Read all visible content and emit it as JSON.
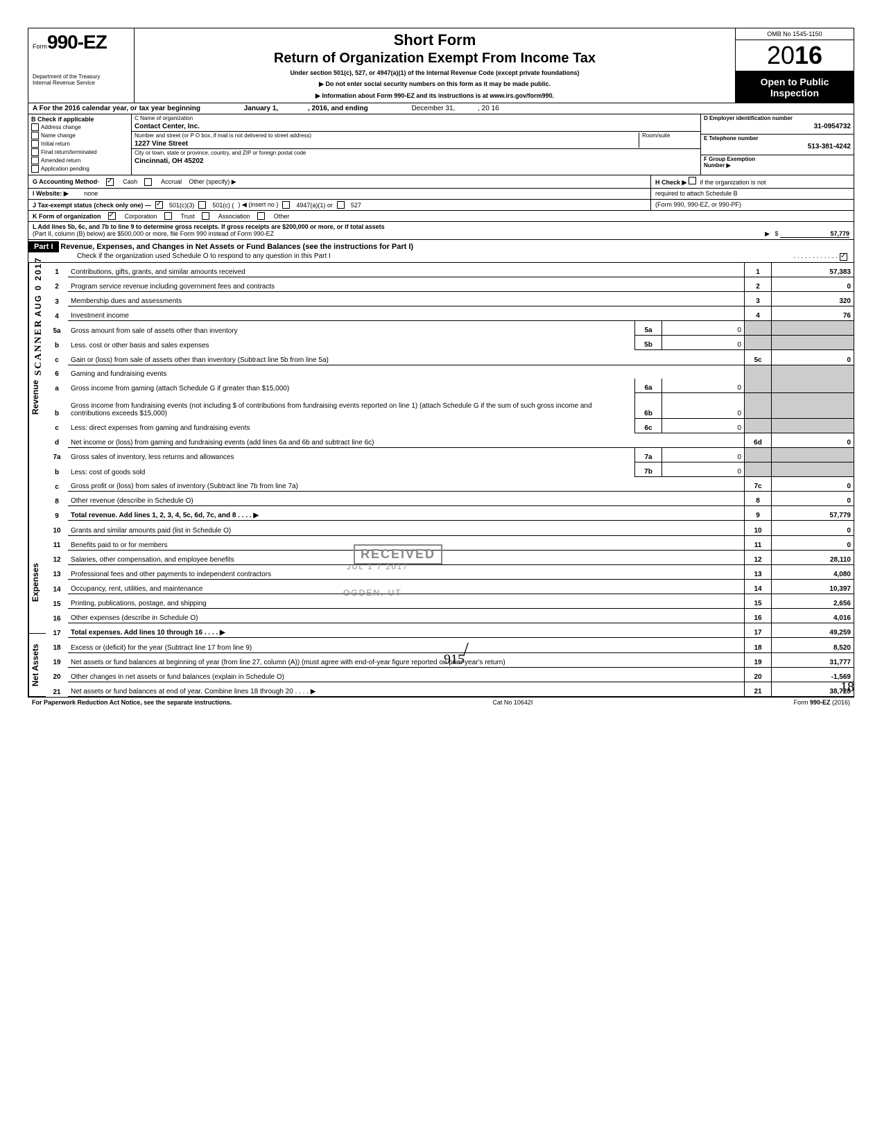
{
  "form": {
    "form_label": "Form",
    "number": "990-EZ",
    "dept1": "Department of the Treasury",
    "dept2": "Internal Revenue Service",
    "title1": "Short Form",
    "title2": "Return of Organization Exempt From Income Tax",
    "title3": "Under section 501(c), 527, or 4947(a)(1) of the Internal Revenue Code (except private foundations)",
    "note1": "▶ Do not enter social security numbers on this form as it may be made public.",
    "note2": "▶ Information about Form 990-EZ and its instructions is at www.irs.gov/form990.",
    "omb": "OMB No 1545-1150",
    "year_prefix": "20",
    "year_suffix": "16",
    "open1": "Open to Public",
    "open2": "Inspection"
  },
  "period": {
    "line": "A For the 2016 calendar year, or tax year beginning",
    "begin": "January 1,",
    "mid": ", 2016, and ending",
    "end_month": "December 31,",
    "end_year": ", 20   16"
  },
  "checks": {
    "B_label": "B  Check if applicable",
    "items": [
      "Address change",
      "Name change",
      "Initial return",
      "Final return/terminated",
      "Amended return",
      "Application pending"
    ]
  },
  "org": {
    "C_label": "C Name of organization",
    "name": "Contact Center, Inc.",
    "addr_label": "Number and street (or P O box, if mail is not delivered to street address)",
    "room_label": "Room/suite",
    "street": "1227 Vine Street",
    "city_label": "City or town, state or province, country, and ZIP or foreign postal code",
    "city": "Cincinnati, OH 45202"
  },
  "right": {
    "D_label": "D Employer identification number",
    "ein": "31-0954732",
    "E_label": "E Telephone number",
    "phone": "513-381-4242",
    "F_label": "F Group Exemption",
    "F_label2": "Number ▶"
  },
  "lines": {
    "G": "G  Accounting Method·",
    "G_cash": "Cash",
    "G_accrual": "Accrual",
    "G_other": "Other (specify) ▶",
    "I": "I   Website: ▶",
    "I_val": "none",
    "J": "J  Tax-exempt status (check only one) —",
    "J_501c3": "501(c)(3)",
    "J_501c": "501(c) (",
    "J_insert": ") ◀ (insert no )",
    "J_4947": "4947(a)(1) or",
    "J_527": "527",
    "K": "K  Form of organization",
    "K_corp": "Corporation",
    "K_trust": "Trust",
    "K_assoc": "Association",
    "K_other": "Other",
    "H": "H  Check ▶",
    "H2": "if the organization is not",
    "H3": "required to attach Schedule B",
    "H4": "(Form 990, 990-EZ, or 990-PF)",
    "L": "L  Add lines 5b, 6c, and 7b to line 9 to determine gross receipts. If gross receipts are $200,000 or more, or if total assets",
    "L2": "(Part II, column (B) below) are $500,000 or more, file Form 990 instead of Form 990-EZ",
    "L_val": "57,779"
  },
  "part1": {
    "label": "Part I",
    "title": "Revenue, Expenses, and Changes in Net Assets or Fund Balances (see the instructions for Part I)",
    "check": "Check if the organization used Schedule O to respond to any question in this Part I"
  },
  "sections": {
    "revenue": "Revenue",
    "expenses": "Expenses",
    "netassets": "Net Assets"
  },
  "rows": [
    {
      "n": "1",
      "d": "Contributions, gifts, grants, and similar amounts received",
      "rn": "1",
      "v": "57,383"
    },
    {
      "n": "2",
      "d": "Program service revenue including government fees and contracts",
      "rn": "2",
      "v": "0"
    },
    {
      "n": "3",
      "d": "Membership dues and assessments",
      "rn": "3",
      "v": "320"
    },
    {
      "n": "4",
      "d": "Investment income",
      "rn": "4",
      "v": "76"
    },
    {
      "n": "5a",
      "d": "Gross amount from sale of assets other than inventory",
      "sn": "5a",
      "sv": "0"
    },
    {
      "n": "b",
      "d": "Less. cost or other basis and sales expenses",
      "sn": "5b",
      "sv": "0"
    },
    {
      "n": "c",
      "d": "Gain or (loss) from sale of assets other than inventory (Subtract line 5b from line 5a)",
      "rn": "5c",
      "v": "0"
    },
    {
      "n": "6",
      "d": "Gaming and fundraising events"
    },
    {
      "n": "a",
      "d": "Gross income from gaming (attach Schedule G if greater than $15,000)",
      "sn": "6a",
      "sv": "0"
    },
    {
      "n": "b",
      "d": "Gross income from fundraising events (not including  $                      of contributions from fundraising events reported on line 1) (attach Schedule G if the sum of such gross income and contributions exceeds $15,000)",
      "sn": "6b",
      "sv": "0"
    },
    {
      "n": "c",
      "d": "Less: direct expenses from gaming and fundraising events",
      "sn": "6c",
      "sv": "0"
    },
    {
      "n": "d",
      "d": "Net income or (loss) from gaming and fundraising events (add lines 6a and 6b and subtract line 6c)",
      "rn": "6d",
      "v": "0"
    },
    {
      "n": "7a",
      "d": "Gross sales of inventory, less returns and allowances",
      "sn": "7a",
      "sv": "0"
    },
    {
      "n": "b",
      "d": "Less: cost of goods sold",
      "sn": "7b",
      "sv": "0"
    },
    {
      "n": "c",
      "d": "Gross profit or (loss) from sales of inventory (Subtract line 7b from line 7a)",
      "rn": "7c",
      "v": "0"
    },
    {
      "n": "8",
      "d": "Other revenue (describe in Schedule O)",
      "rn": "8",
      "v": "0"
    },
    {
      "n": "9",
      "d": "Total revenue. Add lines 1, 2, 3, 4, 5c, 6d, 7c, and 8",
      "rn": "9",
      "v": "57,779",
      "bold": true,
      "arrow": true
    },
    {
      "n": "10",
      "d": "Grants and similar amounts paid (list in Schedule O)",
      "rn": "10",
      "v": "0"
    },
    {
      "n": "11",
      "d": "Benefits paid to or for members",
      "rn": "11",
      "v": "0"
    },
    {
      "n": "12",
      "d": "Salaries, other compensation, and employee benefits",
      "rn": "12",
      "v": "28,110"
    },
    {
      "n": "13",
      "d": "Professional fees and other payments to independent contractors",
      "rn": "13",
      "v": "4,080"
    },
    {
      "n": "14",
      "d": "Occupancy, rent, utilities, and maintenance",
      "rn": "14",
      "v": "10,397"
    },
    {
      "n": "15",
      "d": "Printing, publications, postage, and shipping",
      "rn": "15",
      "v": "2,656"
    },
    {
      "n": "16",
      "d": "Other expenses (describe in Schedule O)",
      "rn": "16",
      "v": "4,016"
    },
    {
      "n": "17",
      "d": "Total expenses. Add lines 10 through 16",
      "rn": "17",
      "v": "49,259",
      "bold": true,
      "arrow": true
    },
    {
      "n": "18",
      "d": "Excess or (deficit) for the year (Subtract line 17 from line 9)",
      "rn": "18",
      "v": "8,520"
    },
    {
      "n": "19",
      "d": "Net assets or fund balances at beginning of year (from line 27, column (A)) (must agree with end-of-year figure reported on prior year's return)",
      "rn": "19",
      "v": "31,777"
    },
    {
      "n": "20",
      "d": "Other changes in net assets or fund balances (explain in Schedule O)",
      "rn": "20",
      "v": "-1,569"
    },
    {
      "n": "21",
      "d": "Net assets or fund balances at end of year. Combine lines 18 through 20",
      "rn": "21",
      "v": "38,728",
      "arrow": true
    }
  ],
  "footer": {
    "left": "For Paperwork Reduction Act Notice, see the separate instructions.",
    "mid": "Cat No 10642I",
    "right": "Form 990-EZ (2016)"
  },
  "stamps": {
    "received": "RECEIVED",
    "date": "JUL 1 7 2017",
    "ogden": "OGDEN, UT",
    "scanner": "SCANNER",
    "aug": "AUG 0 2017",
    "hand1": "915",
    "hand2": "18"
  }
}
